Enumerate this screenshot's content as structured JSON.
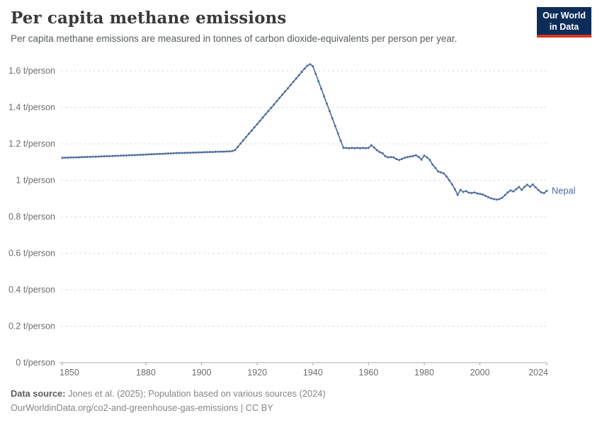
{
  "header": {
    "title": "Per capita methane emissions",
    "subtitle": "Per capita methane emissions are measured in tonnes of carbon dioxide-equivalents per person per year.",
    "logo": {
      "line1": "Our World",
      "line2": "in Data",
      "bg_color": "#0d2d59",
      "bar_color": "#dd3223"
    }
  },
  "chart_data": {
    "type": "line",
    "title": "Per capita methane emissions",
    "subtitle": "Per capita methane emissions are measured in tonnes of carbon dioxide-equivalents per person per year.",
    "xlabel": "",
    "ylabel": "",
    "xlim": [
      1850,
      2024
    ],
    "ylim": [
      0,
      1.68
    ],
    "grid": "dashed-horizontal",
    "legend": "end-of-line-label",
    "x_ticks": [
      1850,
      1880,
      1900,
      1920,
      1940,
      1960,
      1980,
      2000,
      2024
    ],
    "y_ticks": [
      {
        "v": 0,
        "label": "0 t/person"
      },
      {
        "v": 0.2,
        "label": "0.2 t/person"
      },
      {
        "v": 0.4,
        "label": "0.4 t/person"
      },
      {
        "v": 0.6,
        "label": "0.6 t/person"
      },
      {
        "v": 0.8,
        "label": "0.8 t/person"
      },
      {
        "v": 1,
        "label": "1 t/person"
      },
      {
        "v": 1.2,
        "label": "1.2 t/person"
      },
      {
        "v": 1.4,
        "label": "1.4 t/person"
      },
      {
        "v": 1.6,
        "label": "1.6 t/person"
      }
    ],
    "series": [
      {
        "name": "Nepal",
        "color": "#4C6A9C",
        "label_color": "#4C6A9C",
        "x_start_year": 1850,
        "x_step": 1,
        "values": [
          1.123,
          1.124,
          1.124,
          1.125,
          1.125,
          1.126,
          1.126,
          1.127,
          1.127,
          1.128,
          1.128,
          1.129,
          1.129,
          1.13,
          1.131,
          1.131,
          1.132,
          1.132,
          1.133,
          1.134,
          1.134,
          1.135,
          1.136,
          1.136,
          1.137,
          1.138,
          1.138,
          1.139,
          1.14,
          1.14,
          1.141,
          1.142,
          1.143,
          1.143,
          1.144,
          1.145,
          1.145,
          1.146,
          1.147,
          1.147,
          1.148,
          1.149,
          1.149,
          1.15,
          1.15,
          1.151,
          1.151,
          1.152,
          1.152,
          1.153,
          1.153,
          1.154,
          1.154,
          1.155,
          1.155,
          1.156,
          1.156,
          1.157,
          1.157,
          1.158,
          1.158,
          1.16,
          1.165,
          1.183,
          1.201,
          1.219,
          1.237,
          1.255,
          1.272,
          1.29,
          1.308,
          1.326,
          1.344,
          1.362,
          1.38,
          1.397,
          1.415,
          1.433,
          1.451,
          1.469,
          1.487,
          1.504,
          1.522,
          1.54,
          1.558,
          1.576,
          1.594,
          1.612,
          1.628,
          1.636,
          1.625,
          1.584,
          1.543,
          1.502,
          1.461,
          1.42,
          1.38,
          1.339,
          1.298,
          1.257,
          1.216,
          1.178,
          1.177,
          1.176,
          1.177,
          1.176,
          1.177,
          1.176,
          1.177,
          1.176,
          1.177,
          1.192,
          1.18,
          1.165,
          1.155,
          1.148,
          1.132,
          1.126,
          1.127,
          1.125,
          1.116,
          1.111,
          1.117,
          1.123,
          1.127,
          1.13,
          1.133,
          1.137,
          1.128,
          1.113,
          1.135,
          1.126,
          1.112,
          1.085,
          1.068,
          1.048,
          1.043,
          1.038,
          1.021,
          1.0,
          0.978,
          0.951,
          0.92,
          0.948,
          0.936,
          0.941,
          0.932,
          0.93,
          0.933,
          0.928,
          0.925,
          0.922,
          0.915,
          0.907,
          0.901,
          0.897,
          0.894,
          0.897,
          0.904,
          0.919,
          0.934,
          0.944,
          0.939,
          0.951,
          0.963,
          0.947,
          0.964,
          0.975,
          0.964,
          0.977,
          0.961,
          0.946,
          0.934,
          0.929,
          0.942
        ]
      }
    ]
  },
  "footer": {
    "data_source_label": "Data source:",
    "data_source_text": " Jones et al. (2025); Population based on various sources (2024)",
    "url_text": "OurWorldinData.org/co2-and-greenhouse-gas-emissions",
    "license_text": " | CC BY"
  }
}
